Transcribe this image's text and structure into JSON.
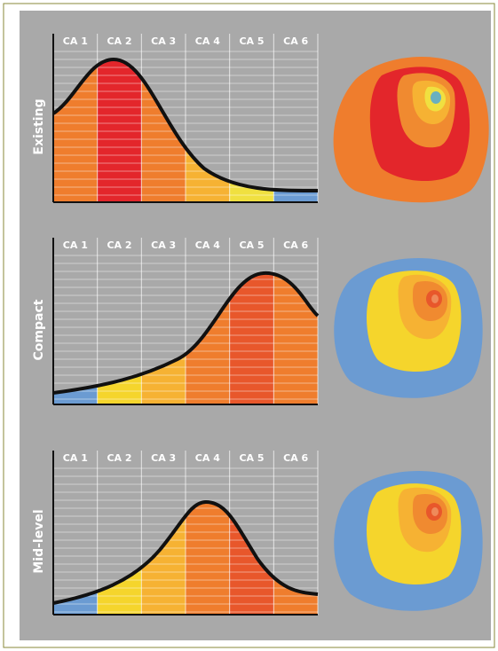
{
  "panels": [
    {
      "label": "Existing",
      "columns": [
        "CA 1",
        "CA 2",
        "CA 3",
        "CA 4",
        "CA 5",
        "CA 6"
      ]
    },
    {
      "label": "Compact",
      "columns": [
        "CA 1",
        "CA 2",
        "CA 3",
        "CA 4",
        "CA 5",
        "CA 6"
      ]
    },
    {
      "label": "Mid-level",
      "columns": [
        "CA 1",
        "CA 2",
        "CA 3",
        "CA 4",
        "CA 5",
        "CA 6"
      ]
    }
  ]
}
